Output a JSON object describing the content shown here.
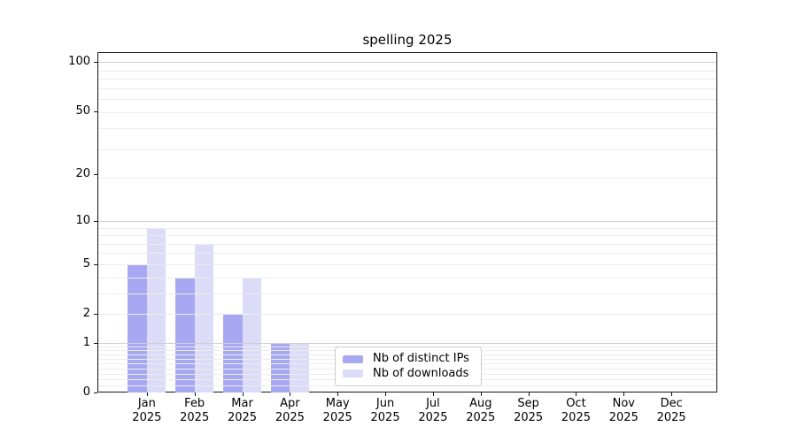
{
  "chart": {
    "title": "spelling 2025",
    "colors": {
      "distinct_ips": "#a8a8f2",
      "downloads": "#dcdcf8",
      "grid_major": "#d0d0d0",
      "grid_minor": "#ececec",
      "legend_border": "#cccccc"
    }
  },
  "chart_data": {
    "type": "bar",
    "title": "spelling 2025",
    "categories": [
      "Jan",
      "Feb",
      "Mar",
      "Apr",
      "May",
      "Jun",
      "Jul",
      "Aug",
      "Sep",
      "Oct",
      "Nov",
      "Dec"
    ],
    "category_year": "2025",
    "series": [
      {
        "name": "Nb of distinct IPs",
        "color": "#a8a8f2",
        "values": [
          5,
          4,
          2,
          1,
          0,
          0,
          0,
          0,
          0,
          0,
          0,
          0
        ]
      },
      {
        "name": "Nb of downloads",
        "color": "#dcdcf8",
        "values": [
          9,
          7,
          4,
          1,
          0,
          0,
          0,
          0,
          0,
          0,
          0,
          0
        ]
      }
    ],
    "xlabel": "",
    "ylabel": "",
    "yscale": "log1p",
    "ylim": [
      0,
      115
    ],
    "ytick_values": [
      0,
      1,
      2,
      5,
      10,
      20,
      50,
      100
    ],
    "ytick_labels": [
      "0",
      "1",
      "2",
      "5",
      "10",
      "20",
      "50",
      "100"
    ],
    "grid": true,
    "grid_minor_values": [
      0.1,
      0.2,
      0.3,
      0.4,
      0.5,
      0.6,
      0.7,
      0.8,
      0.9,
      2,
      3,
      4,
      5,
      6,
      7,
      8,
      9,
      19,
      29,
      39,
      49,
      59,
      69,
      79,
      89
    ],
    "grid_major_values": [
      1,
      10,
      100
    ],
    "legend_position": "lower center",
    "bar_width_fraction": 0.4
  }
}
